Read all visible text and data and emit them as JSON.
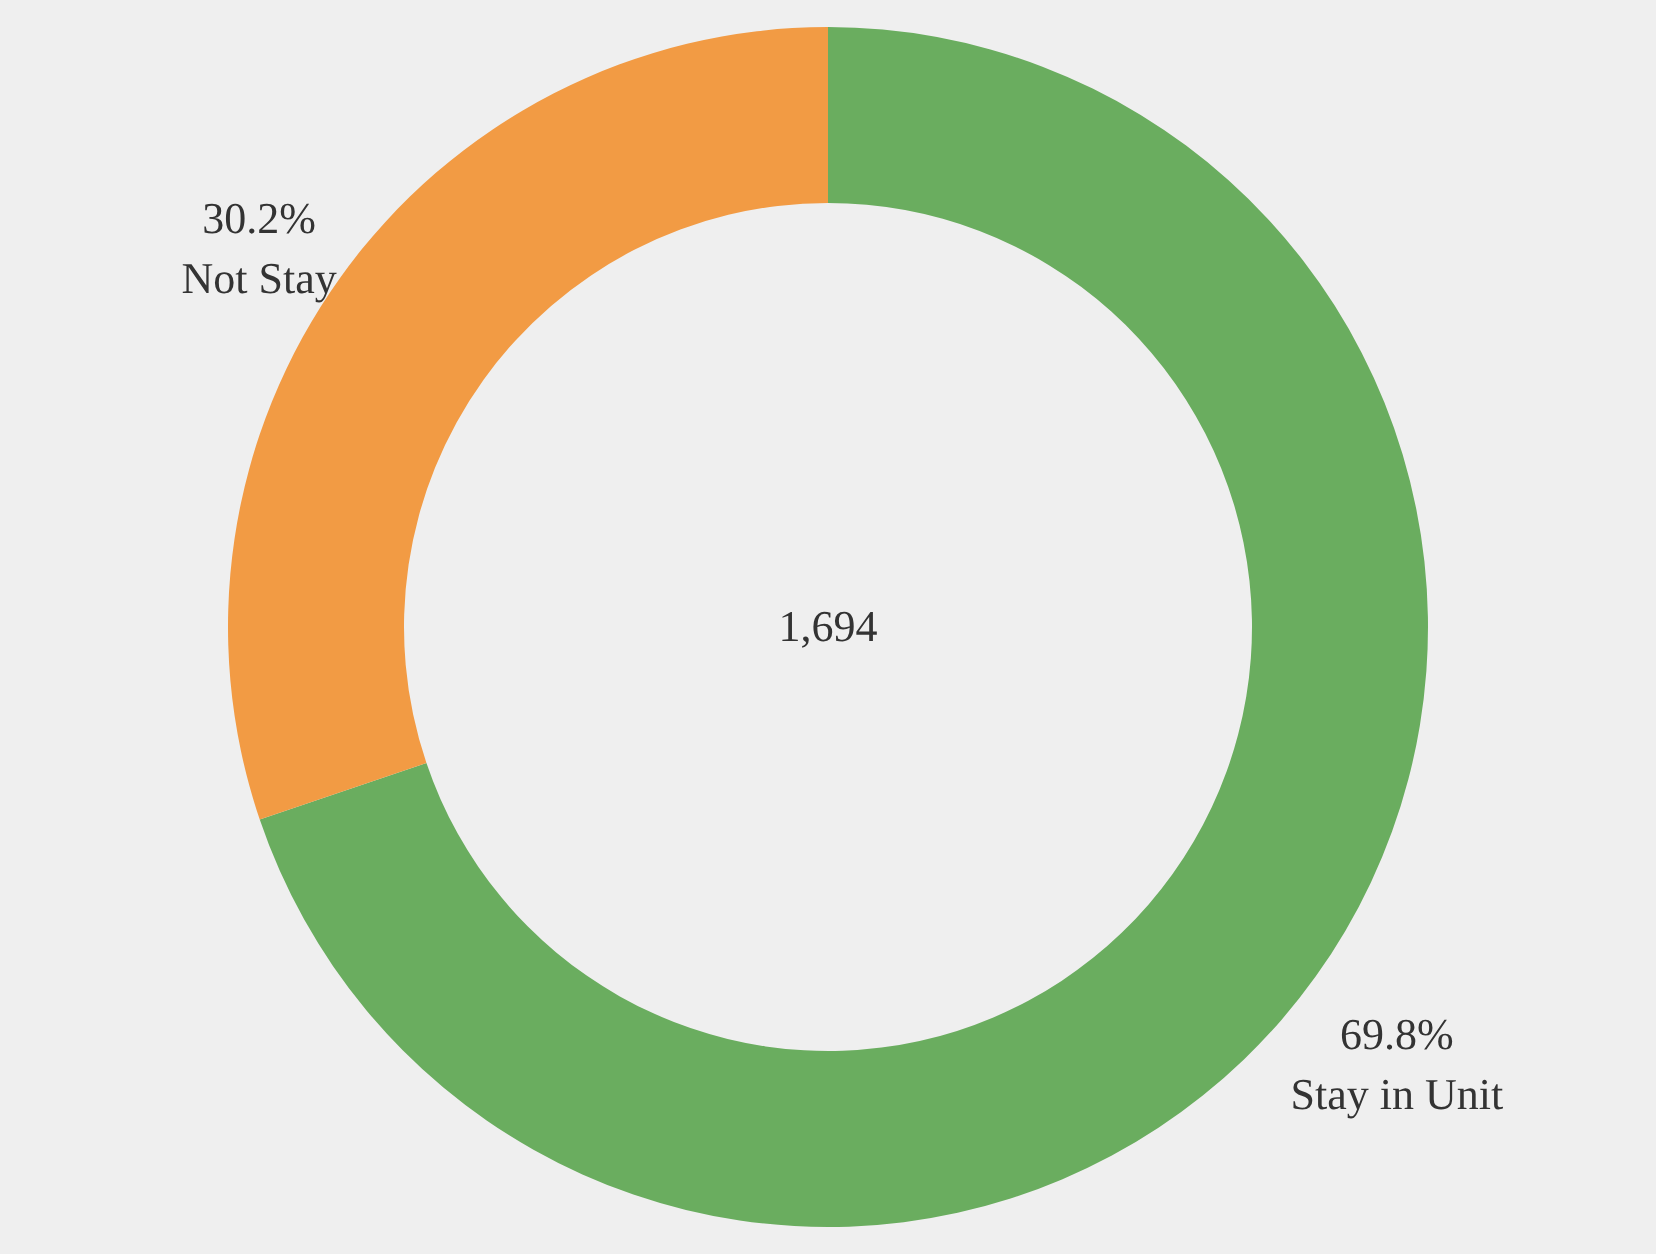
{
  "chart_data": {
    "type": "donut",
    "categories": [
      "Stay in Unit",
      "Not Stay"
    ],
    "values": [
      69.8,
      30.2
    ],
    "colors": [
      "#6aad5f",
      "#f29b44"
    ],
    "value_labels": [
      "69.8%",
      "30.2%"
    ],
    "annotations": [
      "1,694"
    ]
  }
}
